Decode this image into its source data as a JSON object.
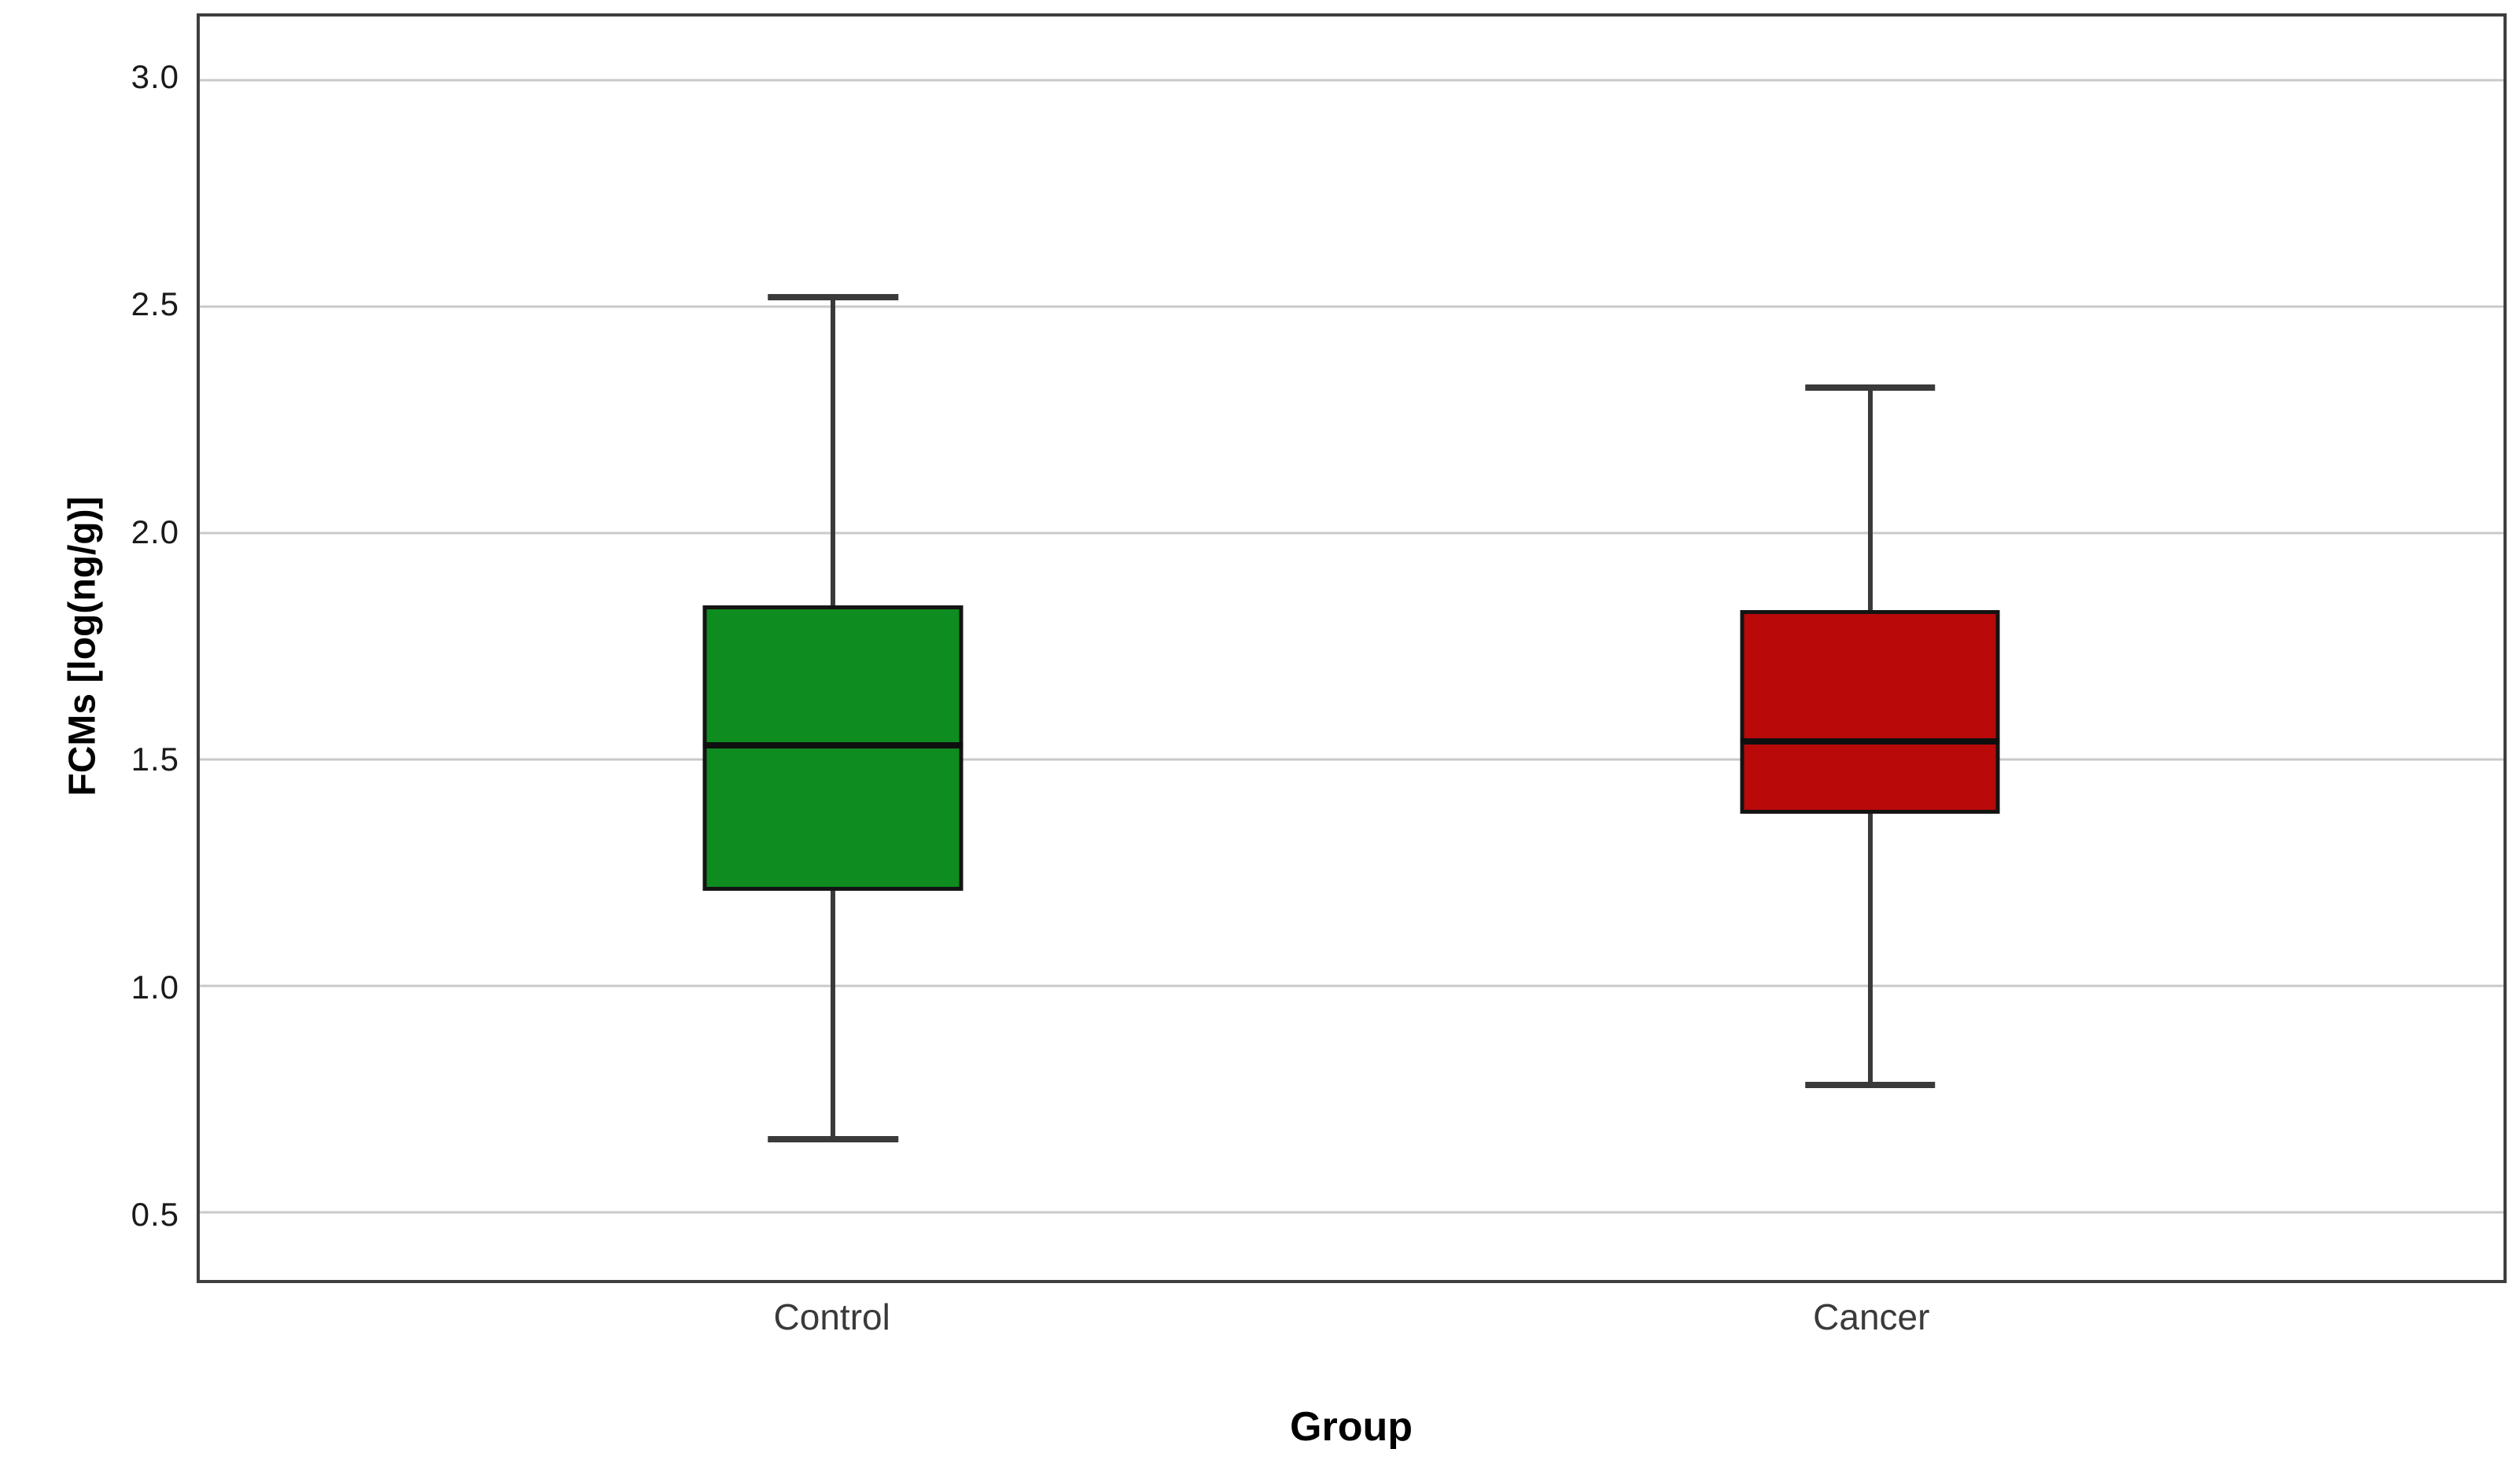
{
  "chart_data": {
    "type": "box",
    "title": "",
    "xlabel": "Group",
    "ylabel": "FCMs [log(ng/g)]",
    "categories": [
      "Control",
      "Cancer"
    ],
    "ylim": [
      0.35,
      3.14
    ],
    "yticks": [
      {
        "value": 0.5,
        "label": "0.5"
      },
      {
        "value": 1.0,
        "label": "1.0"
      },
      {
        "value": 1.5,
        "label": "1.5"
      },
      {
        "value": 2.0,
        "label": "2.0"
      },
      {
        "value": 2.5,
        "label": "2.5"
      },
      {
        "value": 3.0,
        "label": "3.0"
      }
    ],
    "grid": "horizontal",
    "legend": "none",
    "series": [
      {
        "name": "Control",
        "color": "#0e8c1f",
        "whisker_low": 0.66,
        "q1": 1.21,
        "median": 1.53,
        "q3": 1.84,
        "whisker_high": 2.52,
        "outliers": [],
        "x_center_pct": 27.5
      },
      {
        "name": "Cancer",
        "color": "#b90909",
        "whisker_low": 0.78,
        "q1": 1.38,
        "median": 1.54,
        "q3": 1.83,
        "whisker_high": 2.32,
        "outliers": [],
        "x_center_pct": 72.5
      }
    ],
    "box_width_pct": 11.3,
    "cap_width_ratio": 0.5,
    "colors": {
      "gridline": "#c9c9c9",
      "frame": "#3f3f3f",
      "whisker": "#3a3a3a",
      "box_border": "#141414",
      "median": "#0f0f0f",
      "tick_text": "#1a1a1a",
      "category_text": "#3a3a3a",
      "axis_title_text": "#000000"
    }
  }
}
